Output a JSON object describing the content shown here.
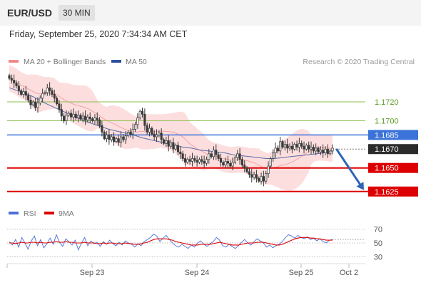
{
  "header": {
    "symbol": "EUR/USD",
    "timeframe": "30 MIN",
    "datetime": "Friday, September 25, 2020 7:34:34 AM CET"
  },
  "credit": "Research © 2020 Trading Central",
  "colors": {
    "candle": "#3a3a3a",
    "ma20": "#f08a8a",
    "bollinger_fill": "#fbd3d3",
    "ma50": "#2d4f9c",
    "resistance": "#8fbf4f",
    "pivot": "#3b73d9",
    "support": "#dd0000",
    "current": "#2b2b2b",
    "arrow": "#2f64b5",
    "rsi": "#4b6fd6",
    "rsi_ma": "#dd0000"
  },
  "chart_data": [
    {
      "type": "candlestick",
      "title": "",
      "legend": [
        {
          "name": "MA 20 + Bollinger Bands",
          "color": "#f08a8a"
        },
        {
          "name": "MA 50",
          "color": "#2d4f9c"
        }
      ],
      "legend_placement": "top-left",
      "x_ticks": [
        "Sep 23",
        "Sep 24",
        "Sep 25",
        "Oct 2"
      ],
      "ylim": [
        1.1612,
        1.1748
      ],
      "levels": [
        {
          "label": "1.1720",
          "value": 1.172,
          "kind": "resistance"
        },
        {
          "label": "1.1700",
          "value": 1.17,
          "kind": "resistance"
        },
        {
          "label": "1.1685",
          "value": 1.1685,
          "kind": "pivot"
        },
        {
          "label": "1.1670",
          "value": 1.167,
          "kind": "current"
        },
        {
          "label": "1.1650",
          "value": 1.165,
          "kind": "support"
        },
        {
          "label": "1.1625",
          "value": 1.1625,
          "kind": "support"
        }
      ],
      "close": [
        1.1745,
        1.1743,
        1.174,
        1.1737,
        1.1732,
        1.1728,
        1.1731,
        1.1727,
        1.1722,
        1.1717,
        1.172,
        1.1714,
        1.1719,
        1.1724,
        1.1729,
        1.173,
        1.1735,
        1.1732,
        1.1728,
        1.1724,
        1.1718,
        1.1712,
        1.1705,
        1.17,
        1.1706,
        1.1708,
        1.1704,
        1.1707,
        1.1703,
        1.1706,
        1.1702,
        1.1705,
        1.1701,
        1.1704,
        1.1702,
        1.17,
        1.1703,
        1.1701,
        1.1695,
        1.1688,
        1.1681,
        1.1685,
        1.168,
        1.1683,
        1.1678,
        1.1681,
        1.1677,
        1.1683,
        1.168,
        1.1684,
        1.1688,
        1.1686,
        1.1691,
        1.1696,
        1.1703,
        1.171,
        1.1707,
        1.1695,
        1.1688,
        1.1692,
        1.1686,
        1.1683,
        1.1685,
        1.1687,
        1.168,
        1.1676,
        1.1679,
        1.1673,
        1.1677,
        1.167,
        1.1674,
        1.1667,
        1.1665,
        1.166,
        1.1656,
        1.1659,
        1.1657,
        1.166,
        1.1658,
        1.1656,
        1.1659,
        1.1657,
        1.1655,
        1.1659,
        1.1665,
        1.1662,
        1.1669,
        1.1664,
        1.166,
        1.1656,
        1.1653,
        1.1657,
        1.1655,
        1.1652,
        1.1656,
        1.1661,
        1.1665,
        1.1659,
        1.1653,
        1.165,
        1.1646,
        1.1643,
        1.164,
        1.1643,
        1.1639,
        1.1636,
        1.1641,
        1.1636,
        1.1644,
        1.1652,
        1.166,
        1.1666,
        1.1671,
        1.1668,
        1.1678,
        1.1672,
        1.1675,
        1.1671,
        1.1673,
        1.167,
        1.1675,
        1.1672,
        1.1676,
        1.1673,
        1.167,
        1.1674,
        1.167,
        1.1672,
        1.1668,
        1.1671,
        1.1667,
        1.1669,
        1.1666,
        1.167,
        1.1665,
        1.1668,
        1.1671
      ],
      "ma50": [
        1.1735,
        1.1732,
        1.1729,
        1.1725,
        1.172,
        1.1716,
        1.1712,
        1.1708,
        1.1704,
        1.17,
        1.1697,
        1.1694,
        1.1691,
        1.1689,
        1.1687,
        1.1685,
        1.1682,
        1.168,
        1.1678,
        1.1676,
        1.1674,
        1.1672,
        1.1671,
        1.1669,
        1.1668,
        1.1667,
        1.1666,
        1.1664,
        1.1663,
        1.1662,
        1.1661,
        1.166,
        1.166,
        1.1661,
        1.1662,
        1.1663,
        1.1664,
        1.1665,
        1.1666,
        1.1668
      ],
      "forecast": {
        "from": 1.1671,
        "to": 1.1625
      }
    },
    {
      "type": "line",
      "title": "",
      "legend": [
        {
          "name": "RSI",
          "color": "#4b6fd6"
        },
        {
          "name": "9MA",
          "color": "#dd0000"
        }
      ],
      "ylim": [
        20,
        80
      ],
      "y_ticks": [
        "70",
        "50",
        "30"
      ],
      "series": [
        {
          "name": "RSI",
          "values": [
            52,
            47,
            55,
            44,
            58,
            50,
            41,
            53,
            60,
            46,
            55,
            43,
            49,
            57,
            48,
            62,
            51,
            45,
            56,
            52,
            47,
            54,
            40,
            50,
            58,
            46,
            53,
            49,
            51,
            45,
            52,
            48,
            54,
            49,
            46,
            51,
            47,
            53,
            50,
            48,
            44,
            49,
            46,
            52,
            55,
            58,
            63,
            60,
            52,
            57,
            61,
            55,
            50,
            46,
            44,
            48,
            45,
            42,
            47,
            44,
            50,
            53,
            48,
            45,
            49,
            52,
            58,
            54,
            46,
            44,
            48,
            45,
            42,
            46,
            51,
            55,
            50,
            47,
            52,
            56,
            53,
            50,
            44,
            47,
            43,
            46,
            48,
            52,
            58,
            62,
            60,
            57,
            61,
            58,
            56,
            59,
            55,
            57,
            53,
            56,
            52,
            50,
            54,
            55
          ]
        },
        {
          "name": "9MA",
          "values": [
            50,
            50,
            49,
            50,
            51,
            50,
            50,
            51,
            51,
            50,
            51,
            50,
            50,
            51,
            51,
            52,
            51,
            51,
            52,
            51,
            51,
            50,
            50,
            50,
            51,
            50,
            50,
            50,
            49,
            49,
            50,
            49,
            50,
            50,
            49,
            49,
            49,
            50,
            49,
            49,
            48,
            48,
            49,
            50,
            51,
            53,
            55,
            56,
            56,
            56,
            56,
            55,
            54,
            52,
            51,
            50,
            49,
            48,
            47,
            47,
            47,
            48,
            48,
            48,
            48,
            49,
            50,
            51,
            50,
            49,
            48,
            47,
            47,
            47,
            48,
            49,
            50,
            50,
            50,
            51,
            51,
            51,
            50,
            49,
            48,
            47,
            47,
            48,
            50,
            52,
            54,
            56,
            57,
            58,
            58,
            58,
            57,
            57,
            56,
            56,
            55,
            54,
            54,
            54
          ]
        }
      ]
    }
  ]
}
